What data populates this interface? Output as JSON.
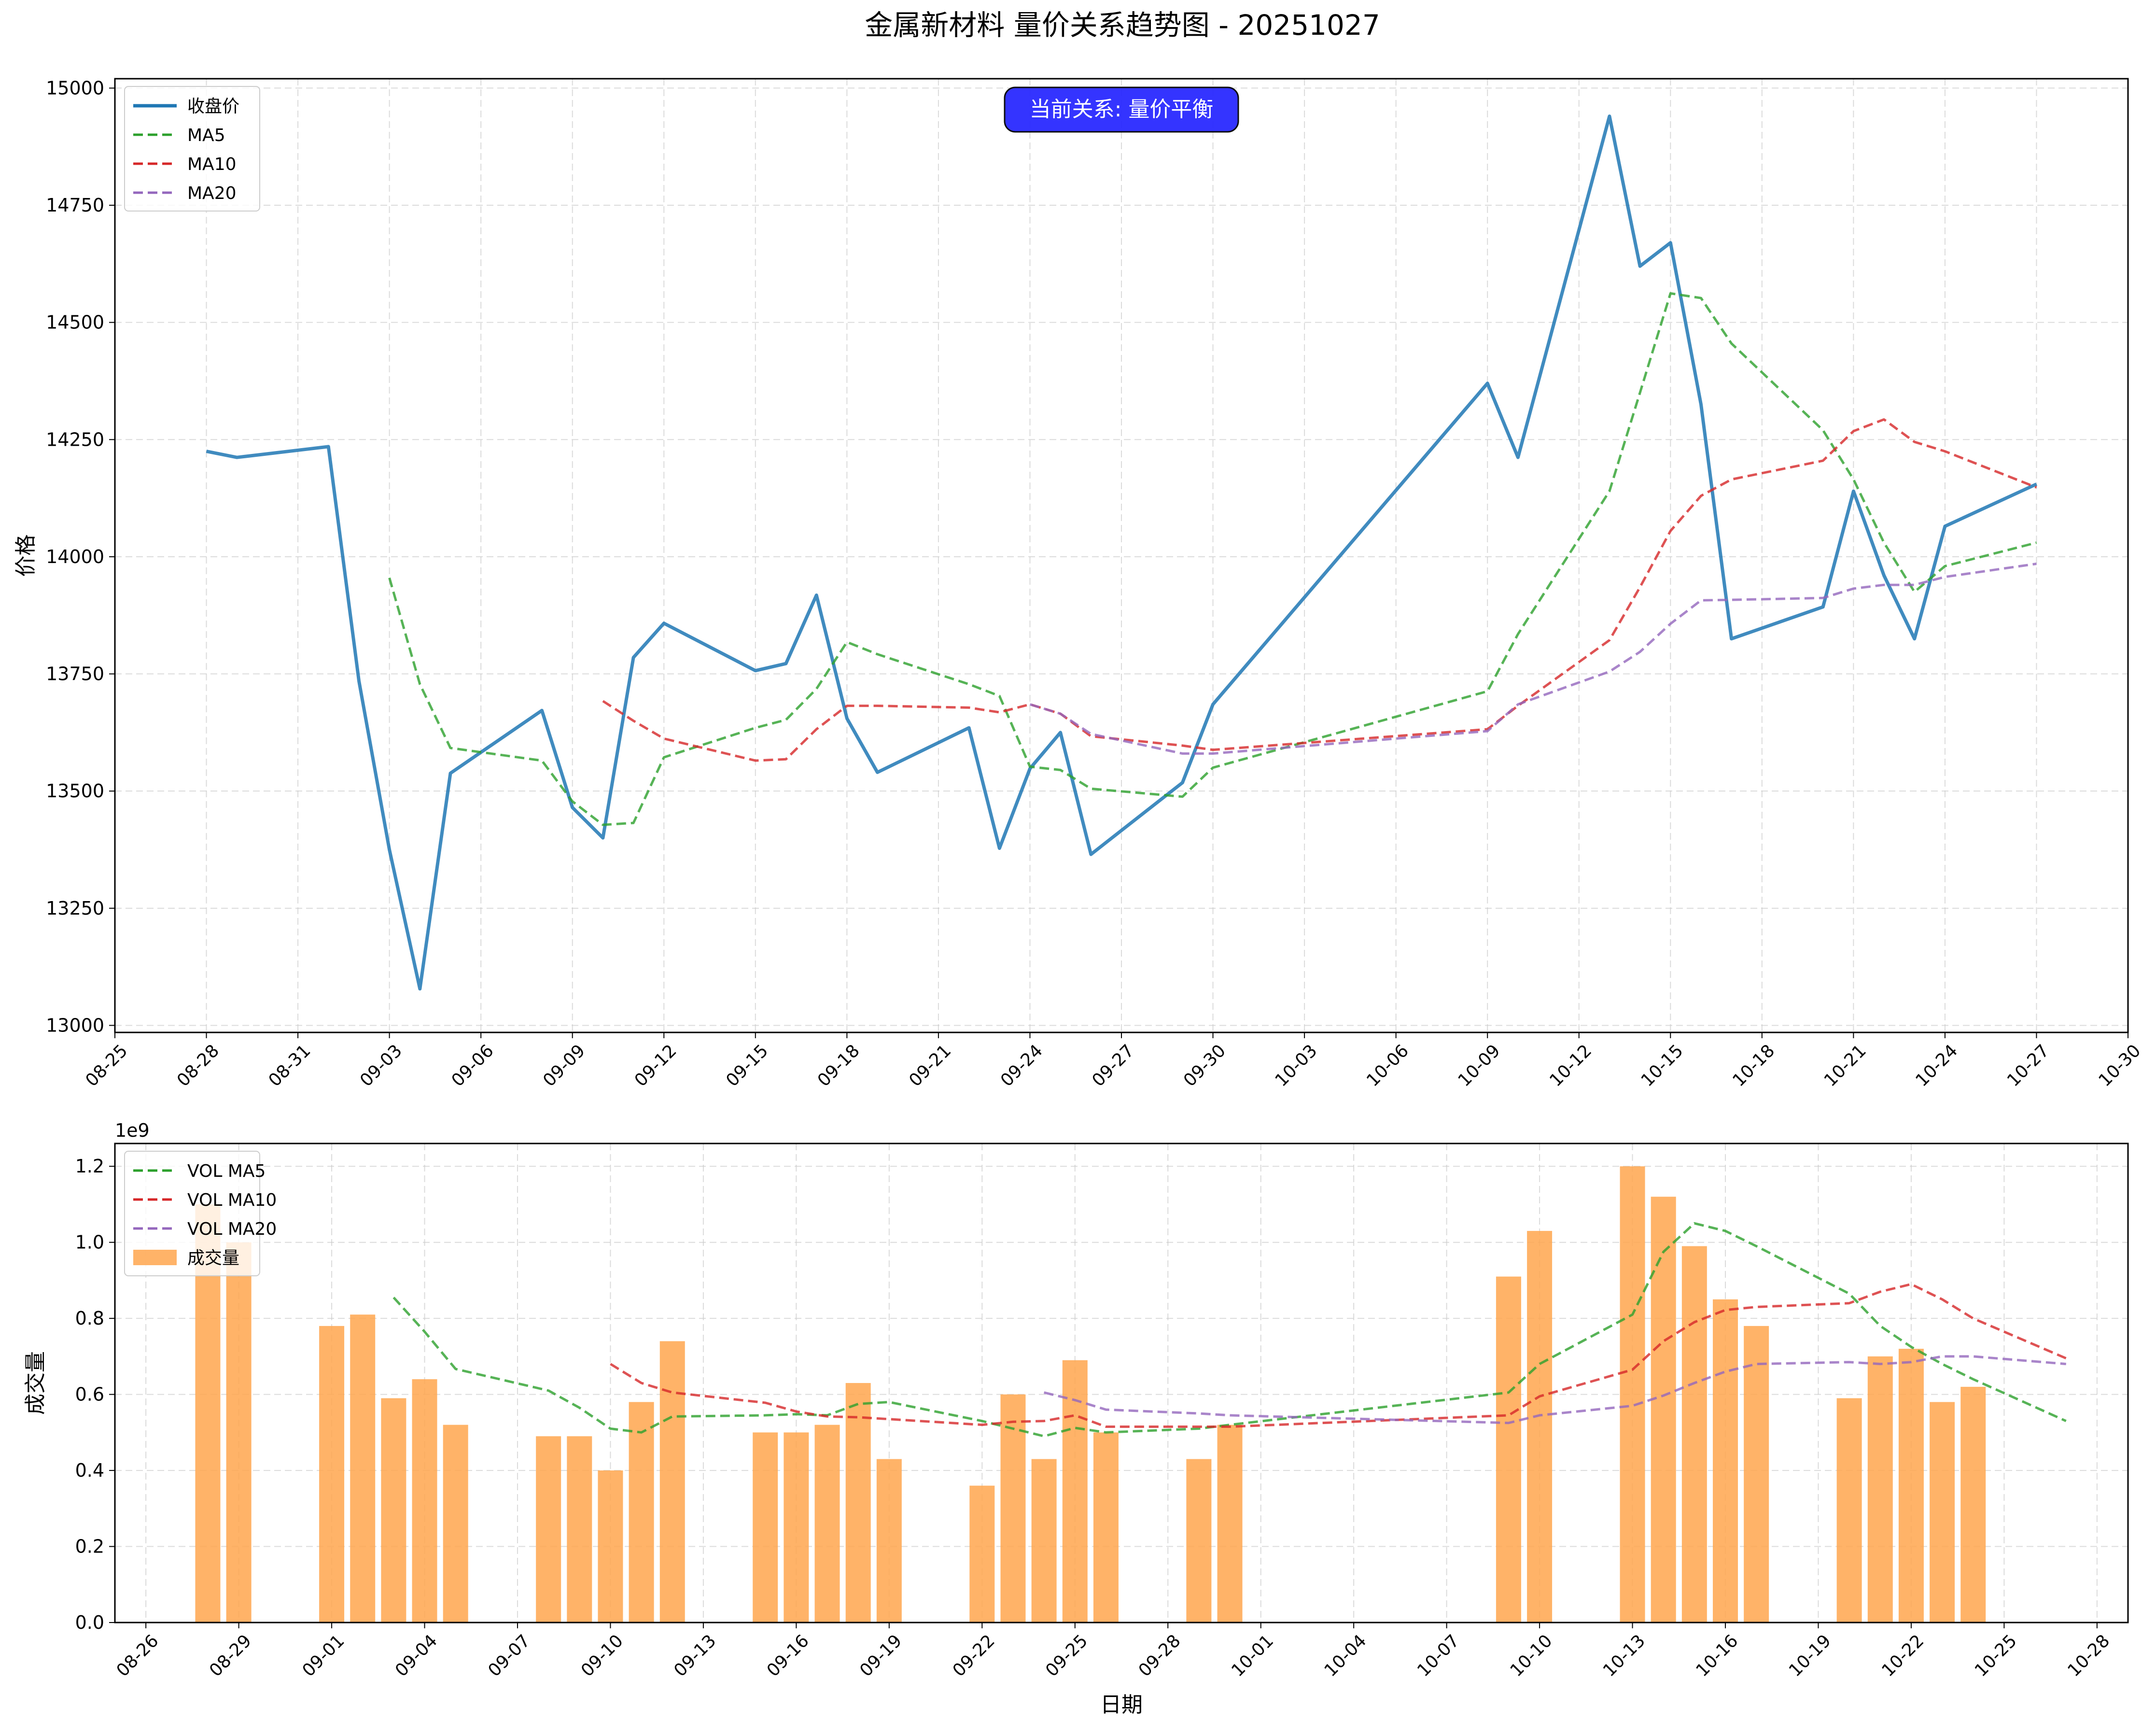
{
  "title": "金属新材料 量价关系趋势图 - 20251027",
  "chart_data": [
    {
      "type": "line",
      "panel": "price",
      "ylabel": "价格",
      "xlabel": "",
      "ylim": [
        12985,
        15020
      ],
      "yticks": [
        13000,
        13250,
        13500,
        13750,
        14000,
        14250,
        14500,
        14750,
        15000
      ],
      "xlim": [
        "2025-08-25",
        "2025-10-30"
      ],
      "xticks": [
        "08-25",
        "08-28",
        "08-31",
        "09-03",
        "09-06",
        "09-09",
        "09-12",
        "09-15",
        "09-18",
        "09-21",
        "09-24",
        "09-27",
        "09-30",
        "10-03",
        "10-06",
        "10-09",
        "10-12",
        "10-15",
        "10-18",
        "10-21",
        "10-24",
        "10-27",
        "10-30"
      ],
      "grid": true,
      "legend_position": "top-left",
      "annotation": {
        "text": "当前关系: 量价平衡",
        "color": "#2a2aff",
        "position": "top-center"
      },
      "dates": [
        "2025-08-28",
        "2025-08-29",
        "2025-09-01",
        "2025-09-02",
        "2025-09-03",
        "2025-09-04",
        "2025-09-05",
        "2025-09-08",
        "2025-09-09",
        "2025-09-10",
        "2025-09-11",
        "2025-09-12",
        "2025-09-15",
        "2025-09-16",
        "2025-09-17",
        "2025-09-18",
        "2025-09-19",
        "2025-09-22",
        "2025-09-23",
        "2025-09-24",
        "2025-09-25",
        "2025-09-26",
        "2025-09-29",
        "2025-09-30",
        "2025-10-09",
        "2025-10-10",
        "2025-10-13",
        "2025-10-14",
        "2025-10-15",
        "2025-10-16",
        "2025-10-17",
        "2025-10-20",
        "2025-10-21",
        "2025-10-22",
        "2025-10-23",
        "2025-10-24",
        "2025-10-27"
      ],
      "series": [
        {
          "name": "收盘价",
          "color": "#1f77b4",
          "style": "solid",
          "values": [
            14225,
            14212,
            14235,
            13735,
            13375,
            13078,
            13538,
            13672,
            13465,
            13400,
            13785,
            13858,
            13757,
            13772,
            13918,
            13655,
            13540,
            13635,
            13378,
            13548,
            13625,
            13365,
            13518,
            13685,
            14370,
            14212,
            14940,
            14620,
            14670,
            14325,
            13825,
            13893,
            14140,
            13960,
            13825,
            14065,
            14155
          ]
        },
        {
          "name": "MA5",
          "color": "#2ca02c",
          "style": "dashed",
          "values": [
            null,
            null,
            null,
            null,
            13955,
            13728,
            13592,
            13565,
            13478,
            13428,
            13432,
            13572,
            13635,
            13652,
            13718,
            13818,
            13792,
            13728,
            13703,
            13552,
            13545,
            13505,
            13488,
            13550,
            13713,
            13835,
            14140,
            14350,
            14562,
            14552,
            14455,
            14270,
            14165,
            14030,
            13925,
            13980,
            14030
          ]
        },
        {
          "name": "MA10",
          "color": "#d62728",
          "style": "dashed",
          "values": [
            null,
            null,
            null,
            null,
            null,
            null,
            null,
            null,
            null,
            13692,
            13650,
            13612,
            13565,
            13568,
            13632,
            13682,
            13682,
            13678,
            13668,
            13685,
            13665,
            13617,
            13597,
            13588,
            13632,
            13682,
            13822,
            13935,
            14055,
            14130,
            14165,
            14205,
            14268,
            14293,
            14245,
            14225,
            14148
          ]
        },
        {
          "name": "MA20",
          "color": "#9467bd",
          "style": "dashed",
          "values": [
            null,
            null,
            null,
            null,
            null,
            null,
            null,
            null,
            null,
            null,
            null,
            null,
            null,
            null,
            null,
            null,
            null,
            null,
            null,
            13685,
            13665,
            13622,
            13580,
            13580,
            13628,
            13685,
            13755,
            13797,
            13857,
            13907,
            13908,
            13912,
            13932,
            13940,
            13940,
            13957,
            13985
          ]
        }
      ]
    },
    {
      "type": "bar",
      "panel": "volume",
      "ylabel": "成交量",
      "xlabel": "日期",
      "offset_text": "1e9",
      "ylim": [
        0,
        1.26
      ],
      "yticks": [
        0.0,
        0.2,
        0.4,
        0.6,
        0.8,
        1.0,
        1.2
      ],
      "xlim": [
        "2025-08-25",
        "2025-10-29"
      ],
      "xticks": [
        "08-26",
        "08-29",
        "09-01",
        "09-04",
        "09-07",
        "09-10",
        "09-13",
        "09-16",
        "09-19",
        "09-22",
        "09-25",
        "09-28",
        "10-01",
        "10-04",
        "10-07",
        "10-10",
        "10-13",
        "10-16",
        "10-19",
        "10-22",
        "10-25",
        "10-28"
      ],
      "grid": true,
      "legend_position": "top-left",
      "dates": [
        "2025-08-28",
        "2025-08-29",
        "2025-09-01",
        "2025-09-02",
        "2025-09-03",
        "2025-09-04",
        "2025-09-05",
        "2025-09-08",
        "2025-09-09",
        "2025-09-10",
        "2025-09-11",
        "2025-09-12",
        "2025-09-15",
        "2025-09-16",
        "2025-09-17",
        "2025-09-18",
        "2025-09-19",
        "2025-09-22",
        "2025-09-23",
        "2025-09-24",
        "2025-09-25",
        "2025-09-26",
        "2025-09-29",
        "2025-09-30",
        "2025-10-09",
        "2025-10-10",
        "2025-10-13",
        "2025-10-14",
        "2025-10-15",
        "2025-10-16",
        "2025-10-17",
        "2025-10-20",
        "2025-10-21",
        "2025-10-22",
        "2025-10-23",
        "2025-10-24",
        "2025-10-27"
      ],
      "bar_series": {
        "name": "成交量",
        "color": "#ffa64d",
        "values": [
          1.1,
          1.0,
          0.78,
          0.81,
          0.59,
          0.64,
          0.52,
          0.49,
          0.49,
          0.4,
          0.58,
          0.74,
          0.5,
          0.5,
          0.52,
          0.63,
          0.43,
          0.36,
          0.6,
          0.43,
          0.69,
          0.5,
          0.43,
          0.52,
          0.91,
          1.03,
          1.2,
          1.12,
          0.99,
          0.85,
          0.78,
          0.59,
          0.7,
          0.72,
          0.58,
          0.62,
          null
        ]
      },
      "series": [
        {
          "name": "VOL MA5",
          "color": "#2ca02c",
          "style": "dashed",
          "values": [
            null,
            null,
            null,
            null,
            0.855,
            0.765,
            0.667,
            0.61,
            0.565,
            0.51,
            0.5,
            0.542,
            0.545,
            0.548,
            0.545,
            0.575,
            0.58,
            0.53,
            0.51,
            0.49,
            0.512,
            0.5,
            0.51,
            0.52,
            0.605,
            0.68,
            0.81,
            0.975,
            1.05,
            1.03,
            0.99,
            0.865,
            0.78,
            0.725,
            0.68,
            0.64,
            0.53
          ]
        },
        {
          "name": "VOL MA10",
          "color": "#d62728",
          "style": "dashed",
          "values": [
            null,
            null,
            null,
            null,
            null,
            null,
            null,
            null,
            null,
            0.68,
            0.63,
            0.605,
            0.578,
            0.555,
            0.542,
            0.54,
            0.535,
            0.52,
            0.528,
            0.53,
            0.545,
            0.515,
            0.515,
            0.515,
            0.545,
            0.595,
            0.665,
            0.74,
            0.79,
            0.822,
            0.83,
            0.84,
            0.87,
            0.89,
            0.85,
            0.8,
            0.695
          ]
        },
        {
          "name": "VOL MA20",
          "color": "#9467bd",
          "style": "dashed",
          "values": [
            null,
            null,
            null,
            null,
            null,
            null,
            null,
            null,
            null,
            null,
            null,
            null,
            null,
            null,
            null,
            null,
            null,
            null,
            null,
            0.605,
            0.585,
            0.56,
            0.55,
            0.545,
            0.525,
            0.545,
            0.57,
            0.597,
            0.63,
            0.66,
            0.68,
            0.685,
            0.68,
            0.685,
            0.7,
            0.7,
            0.68
          ]
        }
      ]
    }
  ]
}
